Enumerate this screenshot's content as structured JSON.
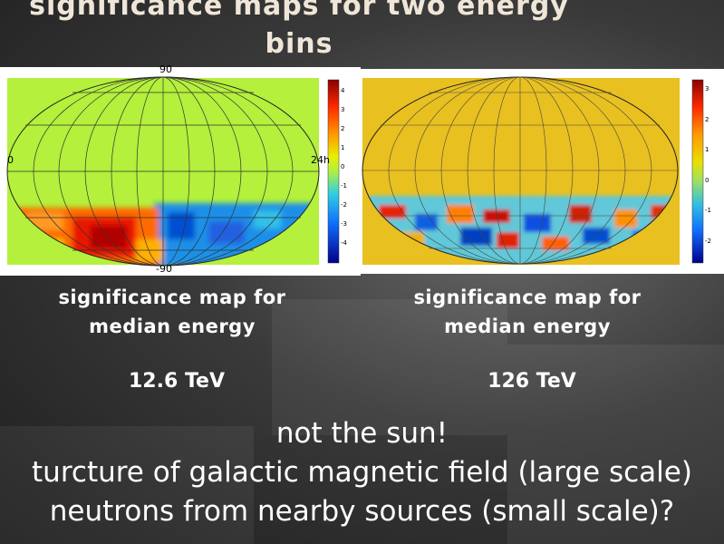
{
  "slide": {
    "title": "significance maps for two energy bins",
    "left_map": {
      "label_top": "90",
      "label_bottom": "-90",
      "label_left": "0",
      "label_right": "24h",
      "colorbar_ticks": [
        "4",
        "3",
        "2",
        "1",
        "0",
        "-1",
        "-2",
        "-3",
        "-4"
      ],
      "caption_line1": "significance map for",
      "caption_line2": "median energy",
      "energy": "12.6 TeV"
    },
    "right_map": {
      "colorbar_ticks": [
        "3",
        "2",
        "1",
        "0",
        "-1",
        "-2"
      ],
      "caption_line1": "significance map for",
      "caption_line2": "median energy",
      "energy": "126 TeV"
    },
    "bottom_lines": [
      "not the sun!",
      "turcture of galactic magnetic field (large scale)",
      "neutrons from nearby sources (small scale)?"
    ]
  }
}
